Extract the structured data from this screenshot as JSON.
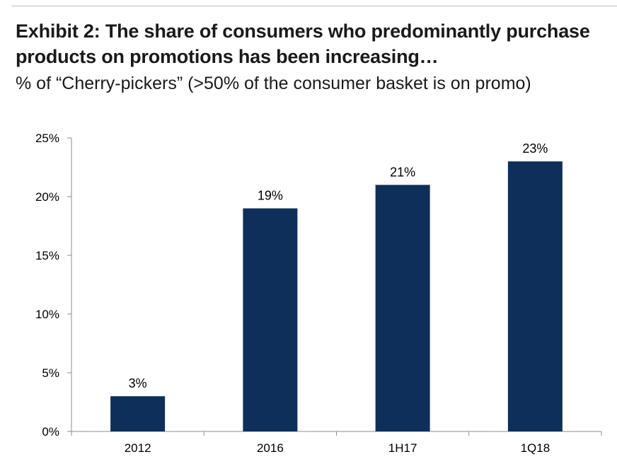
{
  "header": {
    "title": "Exhibit 2: The share of consumers who predominantly purchase products on promotions has been increasing…",
    "subtitle": "% of “Cherry-pickers” (>50% of the consumer basket is on promo)"
  },
  "colors": {
    "bar": "#0d2f5a",
    "axis": "#8c8c8c"
  },
  "chart_data": {
    "type": "bar",
    "title": "Exhibit 2: The share of consumers who predominantly purchase products on promotions has been increasing…",
    "subtitle": "% of “Cherry-pickers” (>50% of the consumer basket is on promo)",
    "categories": [
      "2012",
      "2016",
      "1H17",
      "1Q18"
    ],
    "values": [
      3,
      19,
      21,
      23
    ],
    "data_labels": [
      "3%",
      "19%",
      "21%",
      "23%"
    ],
    "ylim": [
      0,
      25
    ],
    "yticks": [
      0,
      5,
      10,
      15,
      20,
      25
    ],
    "ytick_labels": [
      "0%",
      "5%",
      "10%",
      "15%",
      "20%",
      "25%"
    ],
    "xlabel": "",
    "ylabel": "",
    "grid": false,
    "legend": "none"
  }
}
